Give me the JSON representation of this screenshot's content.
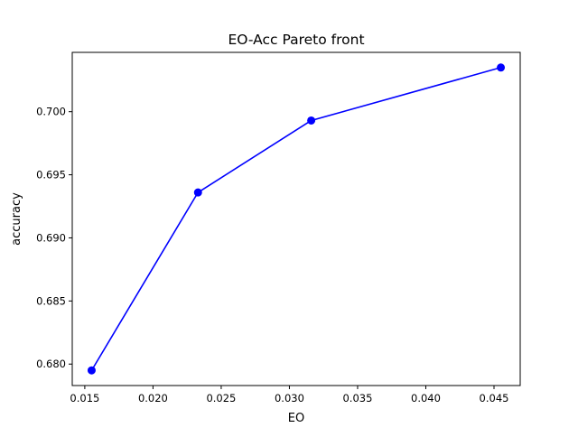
{
  "chart_data": {
    "type": "line",
    "title": "EO-Acc Pareto front",
    "xlabel": "EO",
    "ylabel": "accuracy",
    "x": [
      0.0155,
      0.0233,
      0.0316,
      0.0455
    ],
    "series": [
      {
        "values": [
          0.6795,
          0.6936,
          0.6993,
          0.7035
        ],
        "color": "#0000ff",
        "marker": "circle"
      }
    ],
    "xlim": [
      0.01408,
      0.04692
    ],
    "ylim": [
      0.6783,
      0.7047
    ],
    "xticks": [
      0.015,
      0.02,
      0.025,
      0.03,
      0.035,
      0.04,
      0.045
    ],
    "xtick_labels": [
      "0.015",
      "0.020",
      "0.025",
      "0.030",
      "0.035",
      "0.040",
      "0.045"
    ],
    "yticks": [
      0.68,
      0.685,
      0.69,
      0.695,
      0.7
    ],
    "ytick_labels": [
      "0.680",
      "0.685",
      "0.690",
      "0.695",
      "0.700"
    ],
    "grid": false,
    "legend": false
  }
}
